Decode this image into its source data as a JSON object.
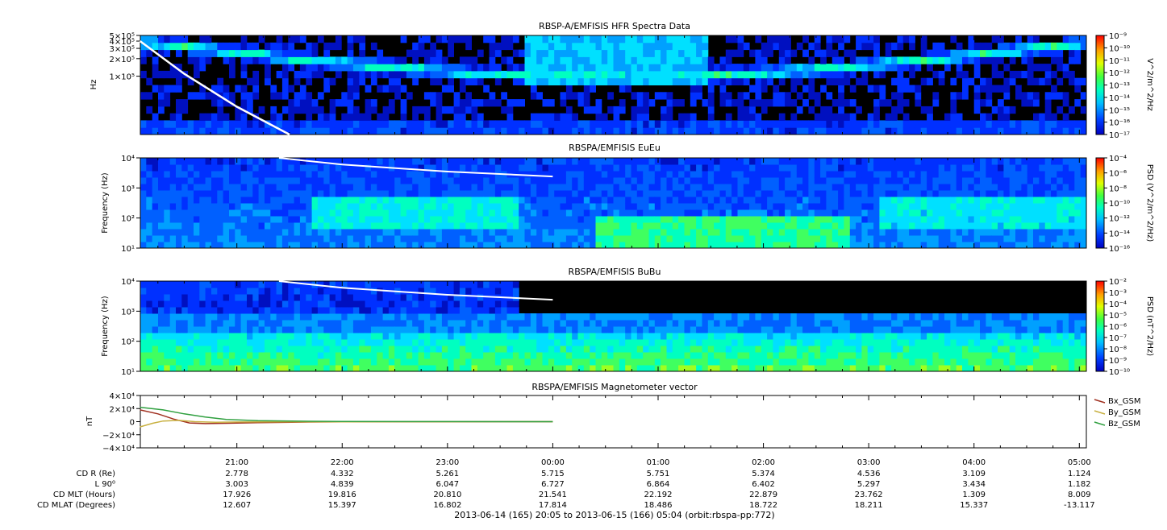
{
  "chart_data": [
    {
      "type": "heatmap",
      "title": "RBSP-A/EMFISIS  HFR Spectra Data",
      "ylabel": "Hz",
      "y_scale": "log",
      "ylim": [
        10000,
        500000
      ],
      "y_ticks": [
        {
          "value": 100000,
          "label": "1×10⁵"
        },
        {
          "value": 200000,
          "label": "2×10⁵"
        },
        {
          "value": 300000,
          "label": "3×10⁵"
        },
        {
          "value": 400000,
          "label": "4×10⁵"
        },
        {
          "value": 500000,
          "label": "5×10⁵"
        }
      ],
      "colorbar": {
        "label": "V^2/m^2/Hz",
        "ticks": [
          "10⁻⁹",
          "10⁻¹⁰",
          "10⁻¹¹",
          "10⁻¹²",
          "10⁻¹³",
          "10⁻¹⁴",
          "10⁻¹⁵",
          "10⁻¹⁶",
          "10⁻¹⁷"
        ]
      },
      "overlay_line": {
        "color": "#ffffff",
        "x": [
          20.08,
          20.5,
          21.0,
          21.5
        ],
        "y": [
          400000,
          110000,
          30000,
          10000
        ]
      }
    },
    {
      "type": "heatmap",
      "title": "RBSPA/EMFISIS  EuEu",
      "ylabel": "Frequency (Hz)",
      "y_scale": "log",
      "ylim": [
        10,
        10000
      ],
      "y_ticks": [
        {
          "value": 10,
          "label": "10¹"
        },
        {
          "value": 100,
          "label": "10²"
        },
        {
          "value": 1000,
          "label": "10³"
        },
        {
          "value": 10000,
          "label": "10⁴"
        }
      ],
      "colorbar": {
        "label": "PSD (V^2/m^2/Hz)",
        "ticks": [
          "10⁻⁴",
          "10⁻⁶",
          "10⁻⁸",
          "10⁻¹⁰",
          "10⁻¹²",
          "10⁻¹⁴",
          "10⁻¹⁶"
        ]
      },
      "overlay_line": {
        "color": "#ffffff",
        "x": [
          21.4,
          22.0,
          23.0,
          24.0
        ],
        "y": [
          10000,
          6000,
          3500,
          2400
        ]
      }
    },
    {
      "type": "heatmap",
      "title": "RBSPA/EMFISIS  BuBu",
      "ylabel": "Frequency (Hz)",
      "y_scale": "log",
      "ylim": [
        10,
        10000
      ],
      "y_ticks": [
        {
          "value": 10,
          "label": "10¹"
        },
        {
          "value": 100,
          "label": "10²"
        },
        {
          "value": 1000,
          "label": "10³"
        },
        {
          "value": 10000,
          "label": "10⁴"
        }
      ],
      "colorbar": {
        "label": "PSD (nT^2/Hz)",
        "ticks": [
          "10⁻²",
          "10⁻³",
          "10⁻⁴",
          "10⁻⁵",
          "10⁻⁶",
          "10⁻⁷",
          "10⁻⁸",
          "10⁻⁹",
          "10⁻¹⁰"
        ]
      },
      "overlay_line": {
        "color": "#ffffff",
        "x": [
          21.4,
          22.0,
          23.0,
          24.0
        ],
        "y": [
          10000,
          6000,
          3500,
          2400
        ]
      }
    },
    {
      "type": "line",
      "title": "RBSPA/EMFISIS  Magnetometer vector",
      "ylabel": "nT",
      "ylim": [
        -40000,
        40000
      ],
      "y_ticks": [
        {
          "value": 40000,
          "label": "4×10⁴"
        },
        {
          "value": 20000,
          "label": "2×10⁴"
        },
        {
          "value": 0,
          "label": "0"
        },
        {
          "value": -20000,
          "label": "−2×10⁴"
        },
        {
          "value": -40000,
          "label": "−4×10⁴"
        }
      ],
      "legend_position": "right",
      "series": [
        {
          "name": "Bx_GSM",
          "color": "#a03020",
          "x": [
            20.08,
            20.25,
            20.4,
            20.55,
            20.7,
            20.9,
            21.2,
            21.6,
            22.0,
            23.0,
            24.0
          ],
          "y": [
            18000,
            12000,
            4000,
            -2000,
            -3000,
            -2500,
            -1500,
            -800,
            -400,
            -100,
            0
          ]
        },
        {
          "name": "By_GSM",
          "color": "#c8b040",
          "x": [
            20.08,
            20.2,
            20.3,
            20.45,
            20.6,
            20.8,
            21.0,
            21.5,
            22.0,
            23.0,
            24.0
          ],
          "y": [
            -8000,
            -2500,
            1000,
            2000,
            0,
            -1000,
            -500,
            -300,
            -200,
            -100,
            0
          ]
        },
        {
          "name": "Bz_GSM",
          "color": "#30a040",
          "x": [
            20.08,
            20.3,
            20.5,
            20.7,
            20.9,
            21.2,
            21.6,
            22.0,
            23.0,
            24.0
          ],
          "y": [
            22000,
            18000,
            12000,
            7000,
            3500,
            1500,
            700,
            300,
            100,
            0
          ]
        }
      ]
    }
  ],
  "time_axis": {
    "start_hour": 20.0833,
    "end_hour": 29.0667,
    "major_labels": [
      "21:00",
      "22:00",
      "23:00",
      "00:00",
      "01:00",
      "02:00",
      "03:00",
      "04:00",
      "05:00"
    ],
    "major_hours": [
      21,
      22,
      23,
      24,
      25,
      26,
      27,
      28,
      29
    ]
  },
  "ephemeris": {
    "rows": [
      {
        "label": "CD R (Re)",
        "values": [
          "2.778",
          "4.332",
          "5.261",
          "5.715",
          "5.751",
          "5.374",
          "4.536",
          "3.109",
          "1.124"
        ]
      },
      {
        "label": "L 90⁰",
        "values": [
          "3.003",
          "4.839",
          "6.047",
          "6.727",
          "6.864",
          "6.402",
          "5.297",
          "3.434",
          "1.182"
        ]
      },
      {
        "label": "CD MLT (Hours)",
        "values": [
          "17.926",
          "19.816",
          "20.810",
          "21.541",
          "22.192",
          "22.879",
          "23.762",
          "1.309",
          "8.009"
        ]
      },
      {
        "label": "CD MLAT (Degrees)",
        "values": [
          "12.607",
          "15.397",
          "16.802",
          "17.814",
          "18.486",
          "18.722",
          "18.211",
          "15.337",
          "-13.117"
        ]
      }
    ]
  },
  "footer": "2013-06-14 (165) 20:05 to 2013-06-15 (166) 05:04 (orbit:rbspa-pp:772)"
}
